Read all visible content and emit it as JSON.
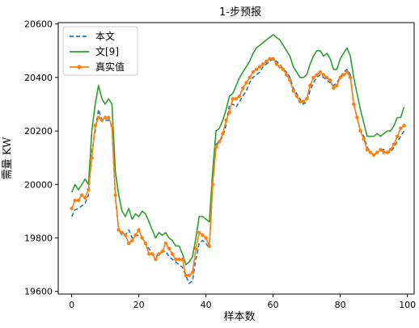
{
  "chart_data": {
    "type": "line",
    "title": "1-步预报",
    "xlabel": "样本数",
    "ylabel": "需量 KW",
    "xlim": [
      -4,
      102
    ],
    "ylim": [
      19590,
      20605
    ],
    "xticks": [
      0,
      20,
      40,
      60,
      80,
      100
    ],
    "yticks": [
      19600,
      19800,
      20000,
      20200,
      20400,
      20600
    ],
    "grid": false,
    "legend_position": "top-left",
    "series": [
      {
        "name": "本文",
        "color": "#1f77b4",
        "style": "dashed",
        "x": [
          0,
          1,
          2,
          3,
          4,
          5,
          6,
          7,
          8,
          9,
          10,
          11,
          12,
          13,
          14,
          15,
          16,
          17,
          18,
          19,
          20,
          21,
          22,
          23,
          24,
          25,
          26,
          27,
          28,
          29,
          30,
          31,
          32,
          33,
          34,
          35,
          36,
          37,
          38,
          39,
          40,
          41,
          42,
          43,
          44,
          45,
          46,
          47,
          48,
          49,
          50,
          51,
          52,
          53,
          54,
          55,
          56,
          57,
          58,
          59,
          60,
          61,
          62,
          63,
          64,
          65,
          66,
          67,
          68,
          69,
          70,
          71,
          72,
          73,
          74,
          75,
          76,
          77,
          78,
          79,
          80,
          81,
          82,
          83,
          84,
          85,
          86,
          87,
          88,
          89,
          90,
          91,
          92,
          93,
          94,
          95,
          96,
          97,
          98,
          99
        ],
        "values": [
          19880,
          19905,
          19910,
          19920,
          19930,
          19960,
          20120,
          20200,
          20280,
          20240,
          20240,
          20240,
          20220,
          19950,
          19830,
          19810,
          19810,
          19830,
          19800,
          19810,
          19810,
          19800,
          19780,
          19760,
          19740,
          19730,
          19740,
          19750,
          19750,
          19730,
          19720,
          19710,
          19700,
          19690,
          19660,
          19630,
          19640,
          19720,
          19780,
          19790,
          19780,
          19760,
          20000,
          20150,
          20160,
          20180,
          20220,
          20300,
          20300,
          20290,
          20310,
          20330,
          20350,
          20380,
          20400,
          20410,
          20420,
          20440,
          20450,
          20460,
          20470,
          20460,
          20450,
          20430,
          20420,
          20400,
          20360,
          20340,
          20320,
          20300,
          20310,
          20350,
          20380,
          20400,
          20410,
          20400,
          20390,
          20380,
          20370,
          20380,
          20400,
          20420,
          20430,
          20410,
          20300,
          20250,
          20200,
          20180,
          20140,
          20120,
          20110,
          20120,
          20130,
          20130,
          20120,
          20120,
          20140,
          20160,
          20180,
          20200
        ]
      },
      {
        "name": "文[9]",
        "color": "#2ca02c",
        "style": "solid",
        "x": [
          0,
          1,
          2,
          3,
          4,
          5,
          6,
          7,
          8,
          9,
          10,
          11,
          12,
          13,
          14,
          15,
          16,
          17,
          18,
          19,
          20,
          21,
          22,
          23,
          24,
          25,
          26,
          27,
          28,
          29,
          30,
          31,
          32,
          33,
          34,
          35,
          36,
          37,
          38,
          39,
          40,
          41,
          42,
          43,
          44,
          45,
          46,
          47,
          48,
          49,
          50,
          51,
          52,
          53,
          54,
          55,
          56,
          57,
          58,
          59,
          60,
          61,
          62,
          63,
          64,
          65,
          66,
          67,
          68,
          69,
          70,
          71,
          72,
          73,
          74,
          75,
          76,
          77,
          78,
          79,
          80,
          81,
          82,
          83,
          84,
          85,
          86,
          87,
          88,
          89,
          90,
          91,
          92,
          93,
          94,
          95,
          96,
          97,
          98,
          99
        ],
        "values": [
          19970,
          20000,
          19980,
          20000,
          20020,
          20000,
          20200,
          20300,
          20370,
          20320,
          20300,
          20320,
          20300,
          20050,
          19960,
          19900,
          19880,
          19910,
          19870,
          19890,
          19880,
          19900,
          19890,
          19860,
          19830,
          19800,
          19820,
          19810,
          19820,
          19800,
          19790,
          19770,
          19770,
          19740,
          19700,
          19710,
          19730,
          19800,
          19880,
          19880,
          19870,
          19860,
          20050,
          20200,
          20210,
          20240,
          20280,
          20330,
          20340,
          20370,
          20400,
          20420,
          20440,
          20460,
          20490,
          20510,
          20520,
          20530,
          20540,
          20550,
          20560,
          20550,
          20540,
          20520,
          20500,
          20480,
          20440,
          20420,
          20400,
          20400,
          20410,
          20450,
          20480,
          20500,
          20500,
          20480,
          20490,
          20470,
          20430,
          20430,
          20470,
          20490,
          20510,
          20480,
          20400,
          20340,
          20280,
          20230,
          20180,
          20180,
          20180,
          20190,
          20180,
          20190,
          20200,
          20200,
          20220,
          20250,
          20250,
          20290
        ]
      },
      {
        "name": "真实值",
        "color": "#ff7f0e",
        "style": "solid-markers",
        "x": [
          0,
          1,
          2,
          3,
          4,
          5,
          6,
          7,
          8,
          9,
          10,
          11,
          12,
          13,
          14,
          15,
          16,
          17,
          18,
          19,
          20,
          21,
          22,
          23,
          24,
          25,
          26,
          27,
          28,
          29,
          30,
          31,
          32,
          33,
          34,
          35,
          36,
          37,
          38,
          39,
          40,
          41,
          42,
          43,
          44,
          45,
          46,
          47,
          48,
          49,
          50,
          51,
          52,
          53,
          54,
          55,
          56,
          57,
          58,
          59,
          60,
          61,
          62,
          63,
          64,
          65,
          66,
          67,
          68,
          69,
          70,
          71,
          72,
          73,
          74,
          75,
          76,
          77,
          78,
          79,
          80,
          81,
          82,
          83,
          84,
          85,
          86,
          87,
          88,
          89,
          90,
          91,
          92,
          93,
          94,
          95,
          96,
          97,
          98,
          99
        ],
        "values": [
          19910,
          19940,
          19940,
          19960,
          19950,
          19980,
          20100,
          20220,
          20250,
          20240,
          20250,
          20250,
          20220,
          19960,
          19830,
          19820,
          19810,
          19780,
          19790,
          19810,
          19830,
          19800,
          19780,
          19740,
          19740,
          19720,
          19740,
          19750,
          19780,
          19760,
          19740,
          19720,
          19720,
          19720,
          19660,
          19660,
          19670,
          19760,
          19820,
          19810,
          19800,
          19770,
          20000,
          20140,
          20160,
          20190,
          20240,
          20270,
          20320,
          20320,
          20330,
          20360,
          20380,
          20400,
          20420,
          20430,
          20440,
          20450,
          20460,
          20470,
          20470,
          20450,
          20440,
          20430,
          20410,
          20390,
          20350,
          20330,
          20310,
          20310,
          20320,
          20370,
          20400,
          20410,
          20420,
          20410,
          20400,
          20390,
          20360,
          20370,
          20400,
          20410,
          20420,
          20400,
          20300,
          20250,
          20200,
          20170,
          20130,
          20120,
          20110,
          20120,
          20130,
          20120,
          20120,
          20130,
          20150,
          20180,
          20210,
          20220
        ]
      }
    ]
  }
}
